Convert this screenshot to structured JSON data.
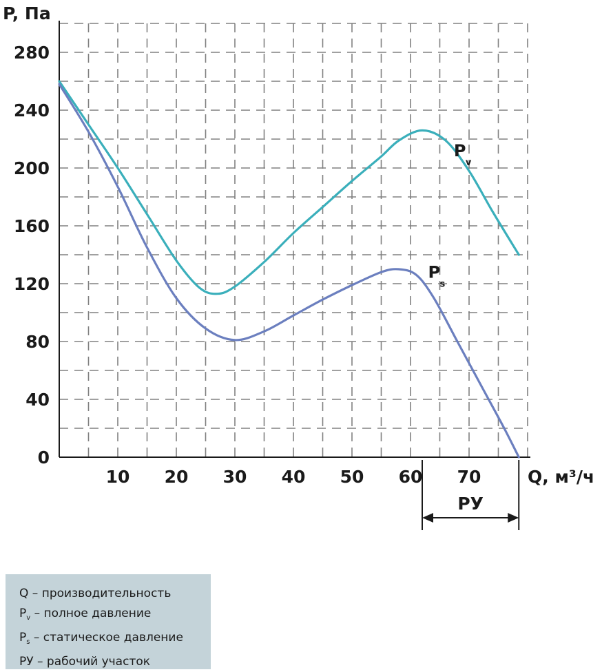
{
  "chart_data": {
    "type": "line",
    "ylabel": "P, Па",
    "xlabel": "Q, м³/ч",
    "x_ticks": [
      10,
      20,
      30,
      40,
      50,
      60,
      70
    ],
    "y_ticks": [
      0,
      40,
      80,
      120,
      160,
      200,
      240,
      280
    ],
    "xlim": [
      0,
      80
    ],
    "ylim": [
      0,
      300
    ],
    "grid": true,
    "series": [
      {
        "name": "Pv",
        "label_main": "P",
        "label_sub": "v",
        "color": "#3aafbb",
        "x": [
          0,
          5,
          10,
          15,
          20,
          24,
          27,
          30,
          35,
          40,
          45,
          50,
          55,
          58,
          62,
          66,
          70,
          74,
          78.5
        ],
        "y": [
          260,
          230,
          200,
          168,
          136,
          117,
          113,
          118,
          135,
          155,
          173,
          191,
          208,
          219,
          226,
          219,
          198,
          170,
          140
        ]
      },
      {
        "name": "Ps",
        "label_main": "P",
        "label_sub": "s",
        "color": "#6b7fbf",
        "x": [
          0,
          5,
          10,
          15,
          20,
          25,
          30,
          35,
          40,
          45,
          50,
          55,
          58,
          61,
          64,
          68,
          72,
          76,
          78.5
        ],
        "y": [
          258,
          225,
          187,
          145,
          110,
          89,
          81,
          87,
          98,
          109,
          119,
          128,
          130,
          126,
          110,
          80,
          50,
          20,
          0
        ]
      }
    ],
    "range_annotation": {
      "label": "РУ",
      "x_start": 62,
      "x_end": 78.5
    }
  },
  "legend": {
    "items": [
      {
        "main": "Q",
        "sub": "",
        "text": " – производительность"
      },
      {
        "main": "P",
        "sub": "v",
        "text": " – полное давление"
      },
      {
        "main": "P",
        "sub": "s",
        "text": " – статическое давление"
      },
      {
        "main": "РУ",
        "sub": "",
        "text": " – рабочий участок"
      }
    ],
    "background": "#c4d3d9"
  }
}
